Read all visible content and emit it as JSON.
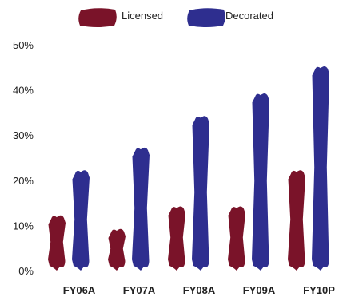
{
  "chart_data": {
    "type": "bar",
    "title": "",
    "xlabel": "",
    "ylabel": "",
    "categories": [
      "FY06A",
      "FY07A",
      "FY08A",
      "FY09A",
      "FY10P"
    ],
    "series": [
      {
        "name": "Licensed",
        "color": "#7a1329",
        "values": [
          12,
          9,
          14,
          14,
          22
        ]
      },
      {
        "name": "Decorated",
        "color": "#2e2e8f",
        "values": [
          22,
          27,
          34,
          39,
          45
        ]
      }
    ],
    "ylim": [
      0,
      50
    ],
    "yticks": [
      "0%",
      "10%",
      "20%",
      "30%",
      "40%",
      "50%"
    ],
    "grid": false,
    "legend": "top-center"
  }
}
